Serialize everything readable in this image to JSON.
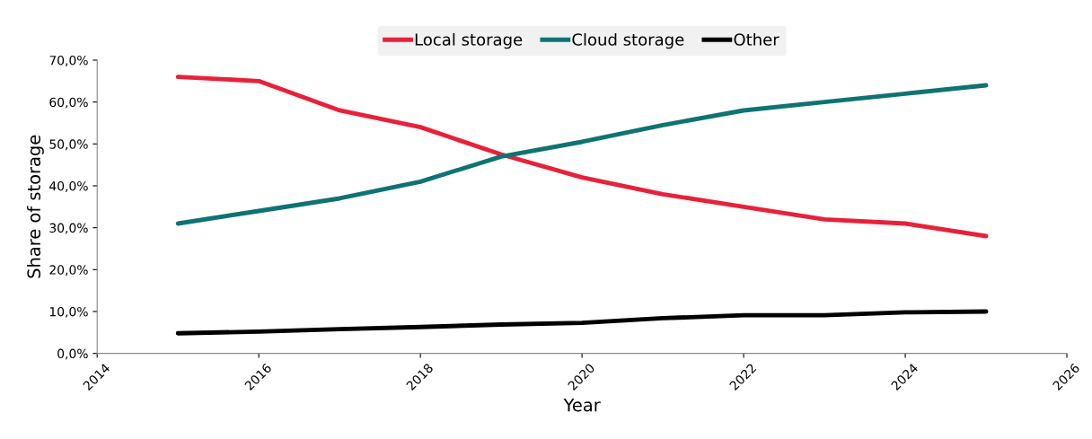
{
  "chart_data": {
    "type": "line",
    "xlabel": "Year",
    "ylabel": "Share of storage",
    "x": [
      2015,
      2016,
      2017,
      2018,
      2019,
      2020,
      2021,
      2022,
      2023,
      2024,
      2025
    ],
    "series": [
      {
        "name": "Local storage",
        "color": "#e8213a",
        "values": [
          66,
          65,
          58,
          54,
          47.5,
          42,
          38,
          35,
          32,
          31,
          28
        ]
      },
      {
        "name": "Cloud storage",
        "color": "#0f7373",
        "values": [
          31,
          34,
          37,
          41,
          47,
          50.5,
          54.5,
          58,
          60,
          62,
          64
        ]
      },
      {
        "name": "Other",
        "color": "#000000",
        "values": [
          4.8,
          5.2,
          5.8,
          6.3,
          6.9,
          7.3,
          8.4,
          9.1,
          9.1,
          9.8,
          10
        ]
      }
    ],
    "xlim": [
      2014,
      2026
    ],
    "xticks": [
      2014,
      2016,
      2018,
      2020,
      2022,
      2024,
      2026
    ],
    "ylim": [
      0,
      70
    ],
    "yticks": [
      {
        "value": 0,
        "label": "0,0%"
      },
      {
        "value": 10,
        "label": "10,0%"
      },
      {
        "value": 20,
        "label": "20,0%"
      },
      {
        "value": 30,
        "label": "30,0%"
      },
      {
        "value": 40,
        "label": "40,0%"
      },
      {
        "value": 50,
        "label": "50,0%"
      },
      {
        "value": 60,
        "label": "60,0%"
      },
      {
        "value": 70,
        "label": "70,0%"
      }
    ],
    "grid": false,
    "legend": "top",
    "marker": "none",
    "line_style": "solid"
  }
}
